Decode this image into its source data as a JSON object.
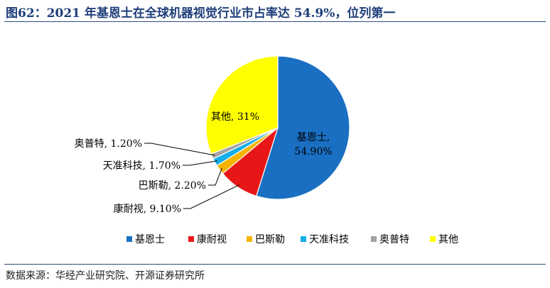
{
  "header": {
    "title": "图62：2021 年基恩士在全球机器视觉行业市占率达 54.9%，位列第一"
  },
  "footer": {
    "source": "数据来源：华经产业研究院、开源证券研究所"
  },
  "chart_data": {
    "type": "pie",
    "title": "",
    "slices": [
      {
        "name": "基恩士",
        "value": 54.9,
        "label": "基恩士,",
        "pct": "54.90%",
        "color": "#1a6fc2"
      },
      {
        "name": "康耐视",
        "value": 9.1,
        "label": "康耐视, 9.10%",
        "color": "#e81717"
      },
      {
        "name": "巴斯勒",
        "value": 2.2,
        "label": "巴斯勒, 2.20%",
        "color": "#f5b400"
      },
      {
        "name": "天准科技",
        "value": 1.7,
        "label": "天准科技, 1.70%",
        "color": "#15aee8"
      },
      {
        "name": "奥普特",
        "value": 1.2,
        "label": "奥普特, 1.20%",
        "color": "#a3a3a3"
      },
      {
        "name": "其他",
        "value": 31,
        "label": "其他, 31%",
        "color": "#ffff00"
      }
    ],
    "legend": {
      "placement": "bottom"
    },
    "start_angle": "12 o'clock",
    "direction": "clockwise"
  }
}
